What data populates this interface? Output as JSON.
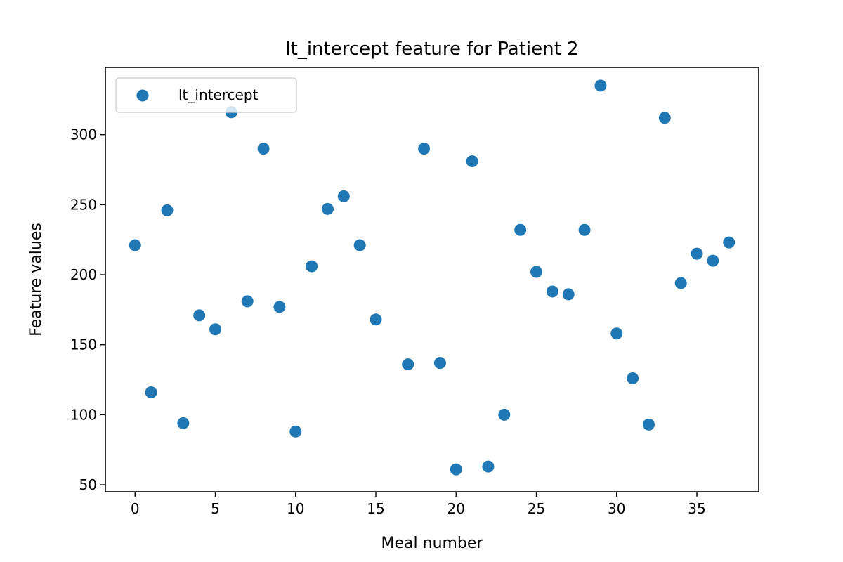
{
  "chart_data": {
    "type": "scatter",
    "title": "lt_intercept feature for Patient 2",
    "xlabel": "Meal number",
    "ylabel": "Feature values",
    "xlim": [
      -1.85,
      38.85
    ],
    "ylim": [
      45,
      348
    ],
    "xticks": [
      0,
      5,
      10,
      15,
      20,
      25,
      30,
      35
    ],
    "yticks": [
      50,
      100,
      150,
      200,
      250,
      300
    ],
    "grid": false,
    "legend_position": "upper-left",
    "marker_color": "#1f77b4",
    "series": [
      {
        "name": "lt_intercept",
        "points": [
          [
            0,
            221
          ],
          [
            1,
            116
          ],
          [
            2,
            246
          ],
          [
            3,
            94
          ],
          [
            4,
            171
          ],
          [
            5,
            161
          ],
          [
            6,
            316
          ],
          [
            7,
            181
          ],
          [
            8,
            290
          ],
          [
            9,
            177
          ],
          [
            10,
            88
          ],
          [
            11,
            206
          ],
          [
            12,
            247
          ],
          [
            13,
            256
          ],
          [
            14,
            221
          ],
          [
            15,
            168
          ],
          [
            17,
            136
          ],
          [
            18,
            290
          ],
          [
            19,
            137
          ],
          [
            20,
            61
          ],
          [
            21,
            281
          ],
          [
            22,
            63
          ],
          [
            23,
            100
          ],
          [
            24,
            232
          ],
          [
            25,
            202
          ],
          [
            26,
            188
          ],
          [
            27,
            186
          ],
          [
            28,
            232
          ],
          [
            29,
            335
          ],
          [
            30,
            158
          ],
          [
            31,
            126
          ],
          [
            32,
            93
          ],
          [
            33,
            312
          ],
          [
            34,
            194
          ],
          [
            35,
            215
          ],
          [
            36,
            210
          ],
          [
            37,
            223
          ]
        ]
      }
    ]
  }
}
